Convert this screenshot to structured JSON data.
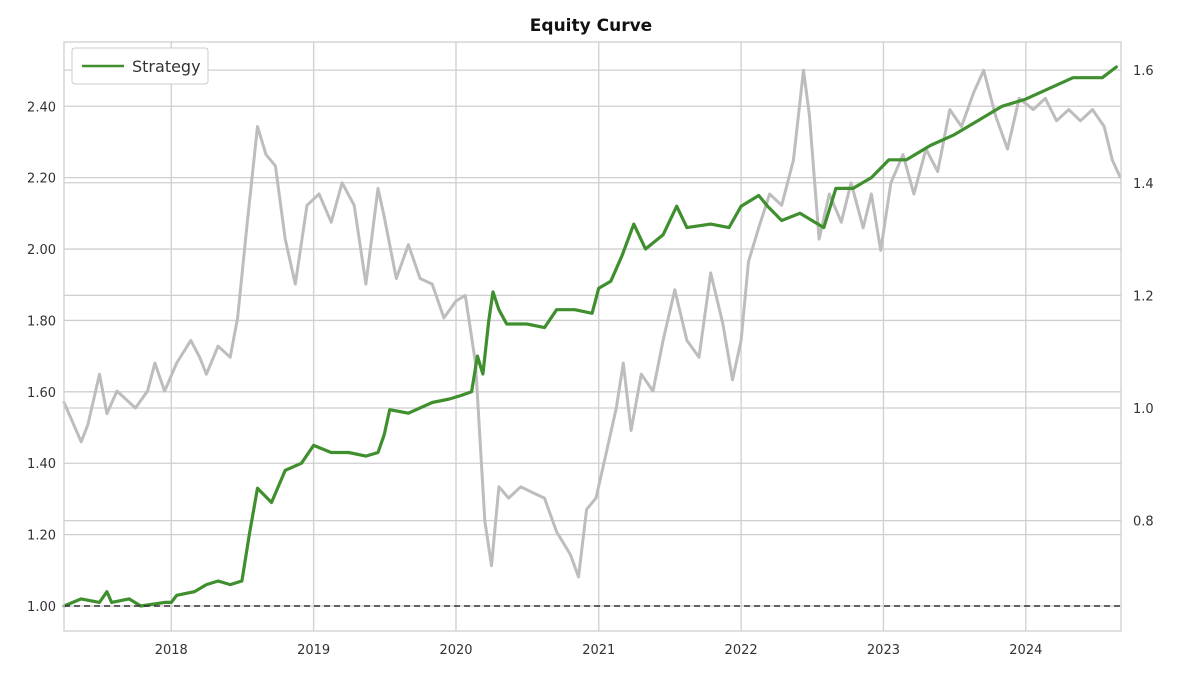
{
  "chart_data": {
    "type": "line",
    "title": "Equity Curve",
    "xlabel": "",
    "ylabel": "",
    "x_range": [
      "2017-04-01",
      "2024-09-01"
    ],
    "x_tick_labels": [
      "2018",
      "2019",
      "2020",
      "2021",
      "2022",
      "2023",
      "2024"
    ],
    "x_tick_dates": [
      "2018-01-01",
      "2019-01-01",
      "2020-01-01",
      "2021-01-01",
      "2022-01-01",
      "2023-01-01",
      "2024-01-01"
    ],
    "ylim_left": [
      0.93,
      2.58
    ],
    "y_ticks_left": [
      "1.00",
      "1.20",
      "1.40",
      "1.60",
      "1.80",
      "2.00",
      "2.20",
      "2.40"
    ],
    "ylim_right": [
      0.604,
      1.65
    ],
    "y_ticks_right": [
      "0.8",
      "1.0",
      "1.2",
      "1.4",
      "1.6"
    ],
    "grid": true,
    "legend_position": "top-left",
    "reference_line": {
      "y": 1.0,
      "axis": "left",
      "style": "dashed",
      "color": "#333333"
    },
    "series": [
      {
        "name": "Strategy",
        "axis": "left",
        "color": "#3f8f2e",
        "points": [
          [
            "2017-04-01",
            1.0
          ],
          [
            "2017-05-15",
            1.02
          ],
          [
            "2017-07-01",
            1.01
          ],
          [
            "2017-07-20",
            1.04
          ],
          [
            "2017-08-01",
            1.01
          ],
          [
            "2017-09-15",
            1.02
          ],
          [
            "2017-10-15",
            1.0
          ],
          [
            "2017-12-15",
            1.01
          ],
          [
            "2018-01-01",
            1.01
          ],
          [
            "2018-01-15",
            1.03
          ],
          [
            "2018-03-01",
            1.04
          ],
          [
            "2018-04-01",
            1.06
          ],
          [
            "2018-05-01",
            1.07
          ],
          [
            "2018-06-01",
            1.06
          ],
          [
            "2018-07-01",
            1.07
          ],
          [
            "2018-07-20",
            1.2
          ],
          [
            "2018-08-10",
            1.33
          ],
          [
            "2018-09-15",
            1.29
          ],
          [
            "2018-10-20",
            1.38
          ],
          [
            "2018-12-01",
            1.4
          ],
          [
            "2019-01-01",
            1.45
          ],
          [
            "2019-02-15",
            1.43
          ],
          [
            "2019-04-01",
            1.43
          ],
          [
            "2019-05-15",
            1.42
          ],
          [
            "2019-06-15",
            1.43
          ],
          [
            "2019-07-01",
            1.48
          ],
          [
            "2019-07-15",
            1.55
          ],
          [
            "2019-09-01",
            1.54
          ],
          [
            "2019-11-01",
            1.57
          ],
          [
            "2019-12-15",
            1.58
          ],
          [
            "2020-01-15",
            1.59
          ],
          [
            "2020-02-10",
            1.6
          ],
          [
            "2020-02-25",
            1.7
          ],
          [
            "2020-03-10",
            1.65
          ],
          [
            "2020-03-25",
            1.8
          ],
          [
            "2020-04-05",
            1.88
          ],
          [
            "2020-04-20",
            1.83
          ],
          [
            "2020-05-10",
            1.79
          ],
          [
            "2020-07-01",
            1.79
          ],
          [
            "2020-08-15",
            1.78
          ],
          [
            "2020-09-15",
            1.83
          ],
          [
            "2020-11-01",
            1.83
          ],
          [
            "2020-12-15",
            1.82
          ],
          [
            "2021-01-01",
            1.89
          ],
          [
            "2021-02-01",
            1.91
          ],
          [
            "2021-03-01",
            1.98
          ],
          [
            "2021-04-01",
            2.07
          ],
          [
            "2021-05-01",
            2.0
          ],
          [
            "2021-06-15",
            2.04
          ],
          [
            "2021-07-20",
            2.12
          ],
          [
            "2021-08-15",
            2.06
          ],
          [
            "2021-10-15",
            2.07
          ],
          [
            "2021-12-01",
            2.06
          ],
          [
            "2022-01-01",
            2.12
          ],
          [
            "2022-02-15",
            2.15
          ],
          [
            "2022-03-10",
            2.12
          ],
          [
            "2022-04-15",
            2.08
          ],
          [
            "2022-06-01",
            2.1
          ],
          [
            "2022-08-01",
            2.06
          ],
          [
            "2022-09-01",
            2.17
          ],
          [
            "2022-10-15",
            2.17
          ],
          [
            "2022-12-01",
            2.2
          ],
          [
            "2023-01-15",
            2.25
          ],
          [
            "2023-03-01",
            2.25
          ],
          [
            "2023-05-01",
            2.29
          ],
          [
            "2023-07-01",
            2.32
          ],
          [
            "2023-09-01",
            2.36
          ],
          [
            "2023-11-01",
            2.4
          ],
          [
            "2024-01-01",
            2.42
          ],
          [
            "2024-03-01",
            2.45
          ],
          [
            "2024-05-01",
            2.48
          ],
          [
            "2024-07-15",
            2.48
          ],
          [
            "2024-08-20",
            2.51
          ]
        ]
      },
      {
        "name": "",
        "axis": "right",
        "color": "#bdbdbd",
        "points": [
          [
            "2017-04-01",
            1.01
          ],
          [
            "2017-05-15",
            0.94
          ],
          [
            "2017-06-01",
            0.97
          ],
          [
            "2017-07-01",
            1.06
          ],
          [
            "2017-07-20",
            0.99
          ],
          [
            "2017-08-15",
            1.03
          ],
          [
            "2017-10-01",
            1.0
          ],
          [
            "2017-11-01",
            1.03
          ],
          [
            "2017-11-20",
            1.08
          ],
          [
            "2017-12-15",
            1.03
          ],
          [
            "2018-01-15",
            1.08
          ],
          [
            "2018-02-20",
            1.12
          ],
          [
            "2018-03-15",
            1.09
          ],
          [
            "2018-04-01",
            1.06
          ],
          [
            "2018-05-01",
            1.11
          ],
          [
            "2018-06-01",
            1.09
          ],
          [
            "2018-06-20",
            1.16
          ],
          [
            "2018-07-15",
            1.33
          ],
          [
            "2018-08-10",
            1.5
          ],
          [
            "2018-09-01",
            1.45
          ],
          [
            "2018-09-25",
            1.43
          ],
          [
            "2018-10-20",
            1.3
          ],
          [
            "2018-11-15",
            1.22
          ],
          [
            "2018-12-15",
            1.36
          ],
          [
            "2019-01-15",
            1.38
          ],
          [
            "2019-02-15",
            1.33
          ],
          [
            "2019-03-15",
            1.4
          ],
          [
            "2019-04-15",
            1.36
          ],
          [
            "2019-05-15",
            1.22
          ],
          [
            "2019-06-15",
            1.39
          ],
          [
            "2019-07-01",
            1.34
          ],
          [
            "2019-08-01",
            1.23
          ],
          [
            "2019-09-01",
            1.29
          ],
          [
            "2019-10-01",
            1.23
          ],
          [
            "2019-11-01",
            1.22
          ],
          [
            "2019-12-01",
            1.16
          ],
          [
            "2020-01-01",
            1.19
          ],
          [
            "2020-01-25",
            1.2
          ],
          [
            "2020-02-20",
            1.08
          ],
          [
            "2020-03-15",
            0.8
          ],
          [
            "2020-04-01",
            0.72
          ],
          [
            "2020-04-20",
            0.86
          ],
          [
            "2020-05-15",
            0.84
          ],
          [
            "2020-06-15",
            0.86
          ],
          [
            "2020-07-15",
            0.85
          ],
          [
            "2020-08-15",
            0.84
          ],
          [
            "2020-09-15",
            0.78
          ],
          [
            "2020-10-20",
            0.74
          ],
          [
            "2020-11-10",
            0.7
          ],
          [
            "2020-12-01",
            0.82
          ],
          [
            "2020-12-25",
            0.84
          ],
          [
            "2021-01-20",
            0.92
          ],
          [
            "2021-02-15",
            1.0
          ],
          [
            "2021-03-05",
            1.08
          ],
          [
            "2021-03-25",
            0.96
          ],
          [
            "2021-04-20",
            1.06
          ],
          [
            "2021-05-20",
            1.03
          ],
          [
            "2021-06-15",
            1.12
          ],
          [
            "2021-07-15",
            1.21
          ],
          [
            "2021-08-15",
            1.12
          ],
          [
            "2021-09-15",
            1.09
          ],
          [
            "2021-10-15",
            1.24
          ],
          [
            "2021-11-15",
            1.15
          ],
          [
            "2021-12-10",
            1.05
          ],
          [
            "2022-01-01",
            1.12
          ],
          [
            "2022-01-20",
            1.26
          ],
          [
            "2022-02-15",
            1.32
          ],
          [
            "2022-03-15",
            1.38
          ],
          [
            "2022-04-15",
            1.36
          ],
          [
            "2022-05-15",
            1.44
          ],
          [
            "2022-06-10",
            1.6
          ],
          [
            "2022-06-25",
            1.52
          ],
          [
            "2022-07-20",
            1.3
          ],
          [
            "2022-08-15",
            1.38
          ],
          [
            "2022-09-15",
            1.33
          ],
          [
            "2022-10-10",
            1.4
          ],
          [
            "2022-11-10",
            1.32
          ],
          [
            "2022-12-01",
            1.38
          ],
          [
            "2022-12-25",
            1.28
          ],
          [
            "2023-01-20",
            1.4
          ],
          [
            "2023-02-20",
            1.45
          ],
          [
            "2023-03-20",
            1.38
          ],
          [
            "2023-04-20",
            1.46
          ],
          [
            "2023-05-20",
            1.42
          ],
          [
            "2023-06-20",
            1.53
          ],
          [
            "2023-07-20",
            1.5
          ],
          [
            "2023-08-20",
            1.56
          ],
          [
            "2023-09-15",
            1.6
          ],
          [
            "2023-10-15",
            1.52
          ],
          [
            "2023-11-15",
            1.46
          ],
          [
            "2023-12-15",
            1.55
          ],
          [
            "2024-01-20",
            1.53
          ],
          [
            "2024-02-20",
            1.55
          ],
          [
            "2024-03-20",
            1.51
          ],
          [
            "2024-04-20",
            1.53
          ],
          [
            "2024-05-20",
            1.51
          ],
          [
            "2024-06-20",
            1.53
          ],
          [
            "2024-07-20",
            1.5
          ],
          [
            "2024-08-10",
            1.44
          ],
          [
            "2024-08-30",
            1.41
          ]
        ]
      }
    ]
  }
}
